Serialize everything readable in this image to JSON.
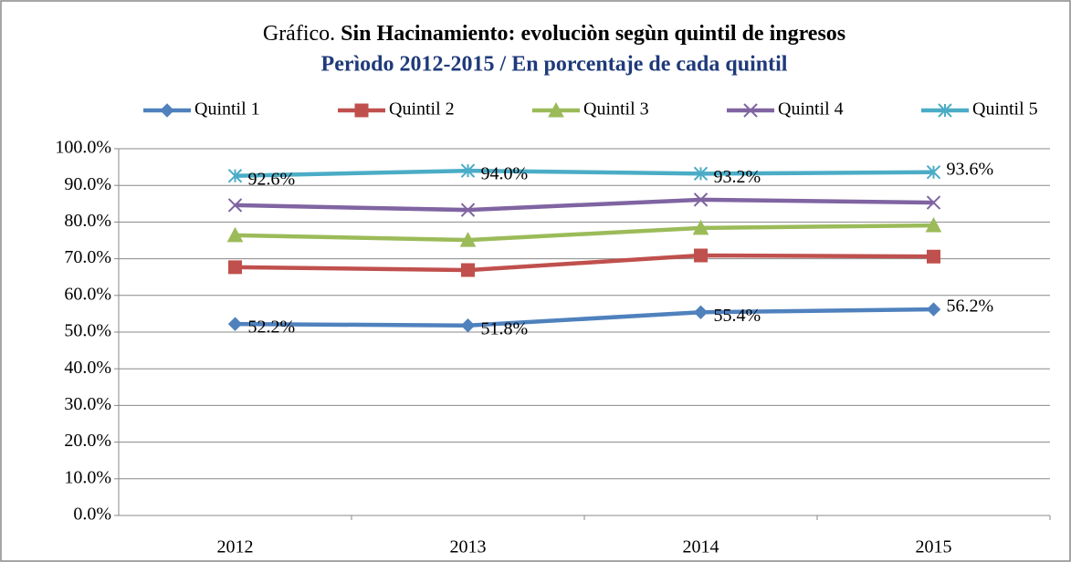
{
  "chart_data": {
    "type": "line",
    "title": [
      "Gráfico.",
      "Sin Hacinamiento: evoluciòn segùn quintil de ingresos"
    ],
    "subtitle": "Perìodo 2012-2015 / En porcentaje de cada quintil",
    "categories": [
      "2012",
      "2013",
      "2014",
      "2015"
    ],
    "series": [
      {
        "name": "Quintil 1",
        "color": "#4f81bd",
        "marker": "diamond",
        "values": [
          52.2,
          51.8,
          55.4,
          56.2
        ],
        "value_labels": [
          "52.2%",
          "51.8%",
          "55.4%",
          "56.2%"
        ]
      },
      {
        "name": "Quintil 2",
        "color": "#c0504d",
        "marker": "square",
        "values": [
          67.7,
          66.9,
          70.9,
          70.6
        ]
      },
      {
        "name": "Quintil 3",
        "color": "#9bbb59",
        "marker": "triangle",
        "values": [
          76.4,
          75.1,
          78.4,
          79.1
        ]
      },
      {
        "name": "Quintil 4",
        "color": "#8064a2",
        "marker": "x",
        "values": [
          84.6,
          83.3,
          86.1,
          85.3
        ]
      },
      {
        "name": "Quintil 5",
        "color": "#4bacc6",
        "marker": "asterisk",
        "values": [
          92.6,
          94.0,
          93.2,
          93.6
        ],
        "value_labels": [
          "92.6%",
          "94.0%",
          "93.2%",
          "93.6%"
        ]
      }
    ],
    "ylim": [
      0,
      100
    ],
    "yticks": [
      {
        "value": 0,
        "label": "0.0%"
      },
      {
        "value": 10,
        "label": "10.0%"
      },
      {
        "value": 20,
        "label": "20.0%"
      },
      {
        "value": 30,
        "label": "30.0%"
      },
      {
        "value": 40,
        "label": "40.0%"
      },
      {
        "value": 50,
        "label": "50.0%"
      },
      {
        "value": 60,
        "label": "60.0%"
      },
      {
        "value": 70,
        "label": "70.0%"
      },
      {
        "value": 80,
        "label": "80.0%"
      },
      {
        "value": 90,
        "label": "90.0%"
      },
      {
        "value": 100,
        "label": "100.0%"
      }
    ],
    "grid": true,
    "legend": "top"
  }
}
